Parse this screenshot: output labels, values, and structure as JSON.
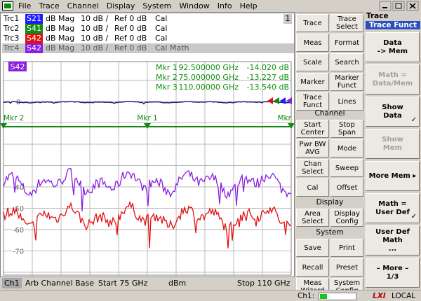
{
  "menu": [
    "File",
    "Trace",
    "Channel",
    "Display",
    "System",
    "Window",
    "Info",
    "Help"
  ],
  "traces": [
    {
      "name": "Trc1",
      "param": "S21",
      "format": "dB Mag",
      "scale": "10 dB /",
      "ref": "Ref 0 dB",
      "status": "Cal",
      "color": "#1c1cff"
    },
    {
      "name": "Trc2",
      "param": "S41",
      "format": "dB Mag",
      "scale": "10 dB /",
      "ref": "Ref 0 dB",
      "status": "Cal",
      "color": "#108a10"
    },
    {
      "name": "Trc3",
      "param": "S42",
      "format": "dB Mag",
      "scale": "10 dB /",
      "ref": "Ref 0 dB",
      "status": "Cal",
      "color": "#e01010"
    },
    {
      "name": "Trc4",
      "param": "S42",
      "format": "dB Mag",
      "scale": "10 dB /",
      "ref": "Ref 0 dB",
      "status": "Cal Math",
      "color": "#8a1ee0"
    }
  ],
  "channel": "1",
  "active_trace": "S42",
  "markers": [
    {
      "label": "Mkr 1",
      "stimulus": "92.500000 GHz",
      "response": "-14.020 dB"
    },
    {
      "label": "Mkr 2",
      "stimulus": "75.000000 GHz",
      "response": "-13.227 dB"
    },
    {
      "label": "Mkr 3",
      "stimulus": "110.00000 GHz",
      "response": "-13.540 dB"
    }
  ],
  "marker_flags": [
    "Mkr 2",
    "Mkr 1",
    "Mkr"
  ],
  "y_labels": [
    0,
    -40,
    -50,
    -60,
    -70
  ],
  "status_bar": {
    "channel": "Ch1",
    "mode": "Arb Channel Base",
    "start": "Start 75 GHz",
    "unit": "dBm",
    "stop": "Stop 110 GHz"
  },
  "hardkeys": {
    "main": [
      [
        "Trace"
      ],
      [
        "Trace",
        "Select"
      ],
      [
        "Meas"
      ],
      [
        "Format"
      ],
      [
        "Scale"
      ],
      [
        "Search"
      ],
      [
        "Marker"
      ],
      [
        "Marker",
        "Funct"
      ],
      [
        "Trace",
        "Funct"
      ],
      [
        "Lines"
      ]
    ],
    "sections": [
      {
        "title": "Channel",
        "keys": [
          [
            "Start",
            "Center"
          ],
          [
            "Stop",
            "Span"
          ],
          [
            "Pwr BW",
            "AVG"
          ],
          [
            "Mode"
          ],
          [
            "Chan",
            "Select"
          ],
          [
            "Sweep"
          ],
          [
            "Cal"
          ],
          [
            "Offset"
          ]
        ]
      },
      {
        "title": "Display",
        "keys": [
          [
            "Area",
            "Select"
          ],
          [
            "Display",
            "Config"
          ]
        ]
      },
      {
        "title": "System",
        "keys": [
          [
            "Save"
          ],
          [
            "Print"
          ],
          [
            "Recall"
          ],
          [
            "Preset"
          ],
          [
            "Meas",
            "Wizard"
          ],
          [
            "System",
            "Config"
          ]
        ]
      }
    ]
  },
  "softkeys": {
    "menu": "Trace",
    "submenu": "Trace Funct",
    "keys": [
      {
        "lines": [
          "Data",
          "-> Mem"
        ]
      },
      {
        "lines": [
          "Math =",
          "Data/Mem"
        ],
        "disabled": true
      },
      {
        "lines": [
          "Show",
          "Data"
        ],
        "check": "✓"
      },
      {
        "lines": [
          "Show",
          "Mem"
        ],
        "disabled": true
      },
      {
        "lines": [
          "More Mem ▸"
        ]
      },
      {
        "lines": [
          "Math =",
          "User Def"
        ],
        "check": "✓"
      },
      {
        "lines": [
          "User Def",
          "Math",
          "..."
        ]
      },
      {
        "lines": [
          "– More –",
          "1/3"
        ]
      }
    ]
  },
  "footer": {
    "channel": "Ch1:",
    "lxi": "LXI",
    "remote": "LOCAL"
  }
}
